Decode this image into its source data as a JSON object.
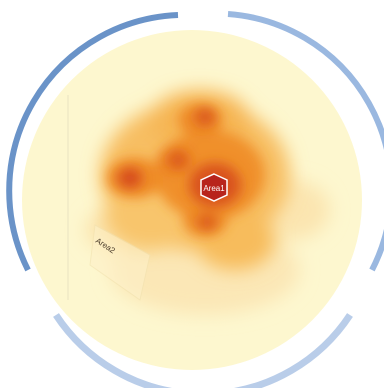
{
  "viewer": {
    "background_color": "#fdf7cf",
    "ring_colors": {
      "left": "#5a86bf",
      "right": "#9ab8e0",
      "bottom": "#b9cde9",
      "top_left": "#6a93c8"
    },
    "heat_colors": [
      "#fde9b0",
      "#f9c56a",
      "#f39a2c",
      "#e8651a",
      "#c8321c"
    ]
  },
  "areas": [
    {
      "label": "Area1",
      "selected": true
    },
    {
      "label": "Area2",
      "selected": false
    }
  ]
}
